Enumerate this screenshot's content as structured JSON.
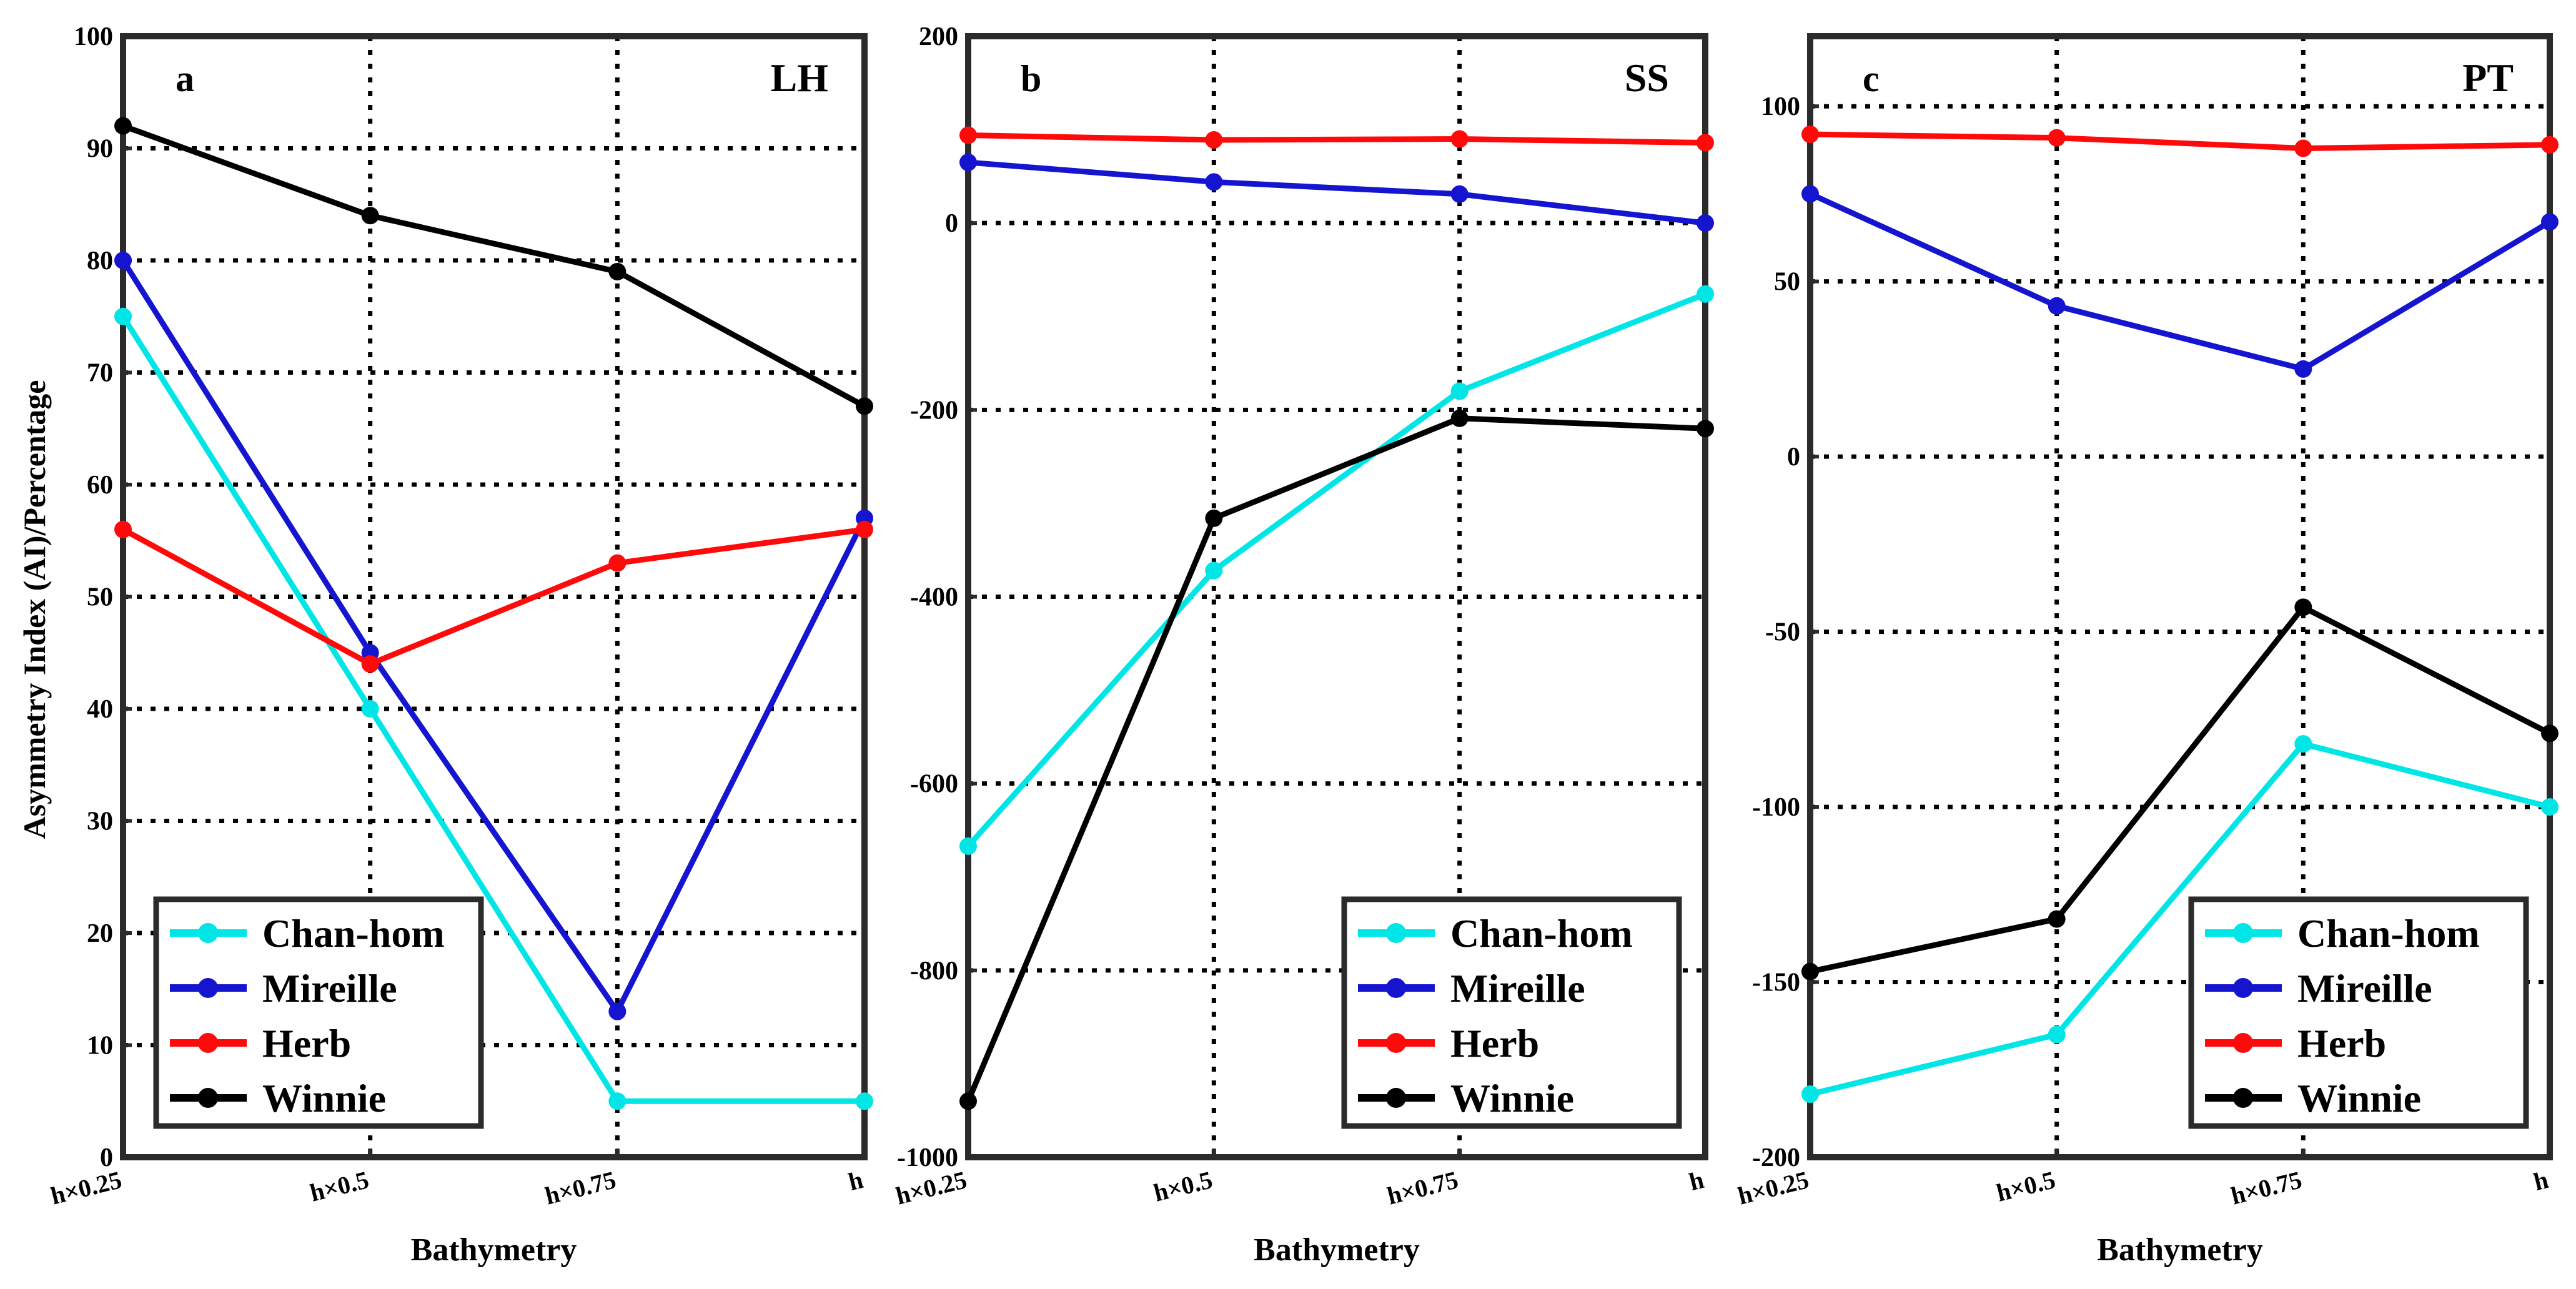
{
  "figure": {
    "ylabel": "Asymmetry Index (AI)/Percentage",
    "xlabel": "Bathymetry",
    "legend": [
      "Chan-hom",
      "Mireille",
      "Herb",
      "Winnie"
    ],
    "colors": {
      "Chan-hom": "#00e5e5",
      "Mireille": "#1515d0",
      "Herb": "#ff0a0a",
      "Winnie": "#000000"
    }
  },
  "chart_data": [
    {
      "type": "line",
      "panel": "a",
      "label": "LH",
      "categories": [
        "h×0.25",
        "h×0.5",
        "h×0.75",
        "h"
      ],
      "ylim": [
        0,
        100
      ],
      "yticks": [
        0,
        10,
        20,
        30,
        40,
        50,
        60,
        70,
        80,
        90,
        100
      ],
      "ylabel": "Asymmetry Index (AI)/Percentage",
      "xlabel": "Bathymetry",
      "legend_position": "bottom-left",
      "series": [
        {
          "name": "Chan-hom",
          "values": [
            75,
            40,
            5,
            5
          ]
        },
        {
          "name": "Mireille",
          "values": [
            80,
            45,
            13,
            57
          ]
        },
        {
          "name": "Herb",
          "values": [
            56,
            44,
            53,
            56
          ]
        },
        {
          "name": "Winnie",
          "values": [
            92,
            84,
            79,
            67
          ]
        }
      ]
    },
    {
      "type": "line",
      "panel": "b",
      "label": "SS",
      "categories": [
        "h×0.25",
        "h×0.5",
        "h×0.75",
        "h"
      ],
      "ylim": [
        -1000,
        200
      ],
      "yticks": [
        -1000,
        -800,
        -600,
        -400,
        -200,
        0,
        200
      ],
      "xlabel": "Bathymetry",
      "legend_position": "bottom-right",
      "series": [
        {
          "name": "Chan-hom",
          "values": [
            -667,
            -372,
            -180,
            -76
          ]
        },
        {
          "name": "Mireille",
          "values": [
            65,
            44,
            31,
            0
          ]
        },
        {
          "name": "Herb",
          "values": [
            94,
            89,
            90,
            86
          ]
        },
        {
          "name": "Winnie",
          "values": [
            -940,
            -316,
            -209,
            -220
          ]
        }
      ]
    },
    {
      "type": "line",
      "panel": "c",
      "label": "PT",
      "categories": [
        "h×0.25",
        "h×0.5",
        "h×0.75",
        "h"
      ],
      "ylim": [
        -200,
        120
      ],
      "yticks": [
        -200,
        -150,
        -100,
        -50,
        0,
        50,
        100
      ],
      "xlabel": "Bathymetry",
      "legend_position": "bottom-right",
      "series": [
        {
          "name": "Chan-hom",
          "values": [
            -182,
            -165,
            -82,
            -100
          ]
        },
        {
          "name": "Mireille",
          "values": [
            75,
            43,
            25,
            67
          ]
        },
        {
          "name": "Herb",
          "values": [
            92,
            91,
            88,
            89
          ]
        },
        {
          "name": "Winnie",
          "values": [
            -147,
            -132,
            -43,
            -79
          ]
        }
      ]
    }
  ]
}
